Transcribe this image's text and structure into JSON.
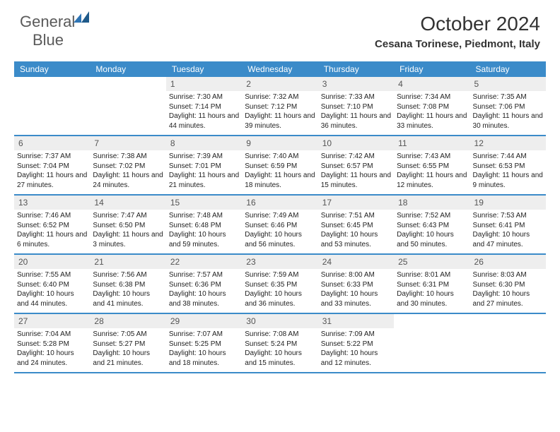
{
  "logo": {
    "text1": "General",
    "text2": "Blue"
  },
  "title": "October 2024",
  "location": "Cesana Torinese, Piedmont, Italy",
  "header_bg": "#3b8bc9",
  "rule_color": "#3b8bc9",
  "daynum_bg": "#eeeeee",
  "weekdays": [
    "Sunday",
    "Monday",
    "Tuesday",
    "Wednesday",
    "Thursday",
    "Friday",
    "Saturday"
  ],
  "weeks": [
    [
      null,
      null,
      {
        "n": "1",
        "sr": "7:30 AM",
        "ss": "7:14 PM",
        "dl": "11 hours and 44 minutes."
      },
      {
        "n": "2",
        "sr": "7:32 AM",
        "ss": "7:12 PM",
        "dl": "11 hours and 39 minutes."
      },
      {
        "n": "3",
        "sr": "7:33 AM",
        "ss": "7:10 PM",
        "dl": "11 hours and 36 minutes."
      },
      {
        "n": "4",
        "sr": "7:34 AM",
        "ss": "7:08 PM",
        "dl": "11 hours and 33 minutes."
      },
      {
        "n": "5",
        "sr": "7:35 AM",
        "ss": "7:06 PM",
        "dl": "11 hours and 30 minutes."
      }
    ],
    [
      {
        "n": "6",
        "sr": "7:37 AM",
        "ss": "7:04 PM",
        "dl": "11 hours and 27 minutes."
      },
      {
        "n": "7",
        "sr": "7:38 AM",
        "ss": "7:02 PM",
        "dl": "11 hours and 24 minutes."
      },
      {
        "n": "8",
        "sr": "7:39 AM",
        "ss": "7:01 PM",
        "dl": "11 hours and 21 minutes."
      },
      {
        "n": "9",
        "sr": "7:40 AM",
        "ss": "6:59 PM",
        "dl": "11 hours and 18 minutes."
      },
      {
        "n": "10",
        "sr": "7:42 AM",
        "ss": "6:57 PM",
        "dl": "11 hours and 15 minutes."
      },
      {
        "n": "11",
        "sr": "7:43 AM",
        "ss": "6:55 PM",
        "dl": "11 hours and 12 minutes."
      },
      {
        "n": "12",
        "sr": "7:44 AM",
        "ss": "6:53 PM",
        "dl": "11 hours and 9 minutes."
      }
    ],
    [
      {
        "n": "13",
        "sr": "7:46 AM",
        "ss": "6:52 PM",
        "dl": "11 hours and 6 minutes."
      },
      {
        "n": "14",
        "sr": "7:47 AM",
        "ss": "6:50 PM",
        "dl": "11 hours and 3 minutes."
      },
      {
        "n": "15",
        "sr": "7:48 AM",
        "ss": "6:48 PM",
        "dl": "10 hours and 59 minutes."
      },
      {
        "n": "16",
        "sr": "7:49 AM",
        "ss": "6:46 PM",
        "dl": "10 hours and 56 minutes."
      },
      {
        "n": "17",
        "sr": "7:51 AM",
        "ss": "6:45 PM",
        "dl": "10 hours and 53 minutes."
      },
      {
        "n": "18",
        "sr": "7:52 AM",
        "ss": "6:43 PM",
        "dl": "10 hours and 50 minutes."
      },
      {
        "n": "19",
        "sr": "7:53 AM",
        "ss": "6:41 PM",
        "dl": "10 hours and 47 minutes."
      }
    ],
    [
      {
        "n": "20",
        "sr": "7:55 AM",
        "ss": "6:40 PM",
        "dl": "10 hours and 44 minutes."
      },
      {
        "n": "21",
        "sr": "7:56 AM",
        "ss": "6:38 PM",
        "dl": "10 hours and 41 minutes."
      },
      {
        "n": "22",
        "sr": "7:57 AM",
        "ss": "6:36 PM",
        "dl": "10 hours and 38 minutes."
      },
      {
        "n": "23",
        "sr": "7:59 AM",
        "ss": "6:35 PM",
        "dl": "10 hours and 36 minutes."
      },
      {
        "n": "24",
        "sr": "8:00 AM",
        "ss": "6:33 PM",
        "dl": "10 hours and 33 minutes."
      },
      {
        "n": "25",
        "sr": "8:01 AM",
        "ss": "6:31 PM",
        "dl": "10 hours and 30 minutes."
      },
      {
        "n": "26",
        "sr": "8:03 AM",
        "ss": "6:30 PM",
        "dl": "10 hours and 27 minutes."
      }
    ],
    [
      {
        "n": "27",
        "sr": "7:04 AM",
        "ss": "5:28 PM",
        "dl": "10 hours and 24 minutes."
      },
      {
        "n": "28",
        "sr": "7:05 AM",
        "ss": "5:27 PM",
        "dl": "10 hours and 21 minutes."
      },
      {
        "n": "29",
        "sr": "7:07 AM",
        "ss": "5:25 PM",
        "dl": "10 hours and 18 minutes."
      },
      {
        "n": "30",
        "sr": "7:08 AM",
        "ss": "5:24 PM",
        "dl": "10 hours and 15 minutes."
      },
      {
        "n": "31",
        "sr": "7:09 AM",
        "ss": "5:22 PM",
        "dl": "10 hours and 12 minutes."
      },
      null,
      null
    ]
  ],
  "labels": {
    "sunrise": "Sunrise:",
    "sunset": "Sunset:",
    "daylight": "Daylight:"
  }
}
